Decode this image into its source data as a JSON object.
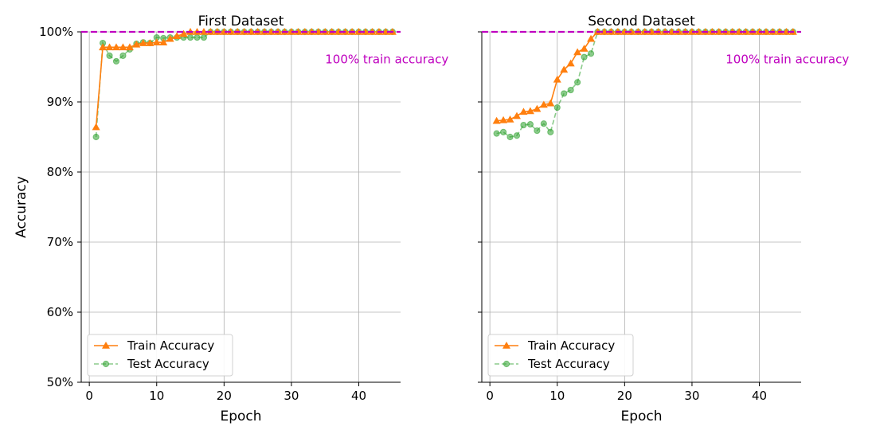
{
  "chart_data": [
    {
      "type": "line",
      "title": "First Dataset",
      "xlabel": "Epoch",
      "ylabel": "Accuracy",
      "xlim": [
        -1.2,
        46.2
      ],
      "ylim": [
        0.5,
        1.0
      ],
      "xticks": [
        0,
        10,
        20,
        30,
        40
      ],
      "yticks": [
        0.5,
        0.6,
        0.7,
        0.8,
        0.9,
        1.0
      ],
      "ytick_labels": [
        "50%",
        "60%",
        "70%",
        "80%",
        "90%",
        "100%"
      ],
      "grid": true,
      "legend_position": "bottom-left",
      "reference_line": {
        "y": 1.0,
        "color": "#bf00bf",
        "style": "dashed"
      },
      "annotation": {
        "text": "100% train accuracy",
        "x": 35,
        "y": 0.955,
        "color": "#bf00bf"
      },
      "series": [
        {
          "name": "Train Accuracy",
          "color": "#ff7f0e",
          "marker": "triangle",
          "linestyle": "solid",
          "x": [
            1,
            2,
            3,
            4,
            5,
            6,
            7,
            8,
            9,
            10,
            11,
            12,
            13,
            14,
            15,
            16,
            17,
            18,
            19,
            20,
            21,
            22,
            23,
            24,
            25,
            26,
            27,
            28,
            29,
            30,
            31,
            32,
            33,
            34,
            35,
            36,
            37,
            38,
            39,
            40,
            41,
            42,
            43,
            44,
            45
          ],
          "values": [
            0.864,
            0.978,
            0.978,
            0.978,
            0.978,
            0.978,
            0.982,
            0.984,
            0.984,
            0.985,
            0.985,
            0.99,
            0.994,
            0.997,
            1.0,
            1.0,
            1.0,
            1.0,
            1.0,
            1.0,
            1.0,
            1.0,
            1.0,
            1.0,
            1.0,
            1.0,
            1.0,
            1.0,
            1.0,
            1.0,
            1.0,
            1.0,
            1.0,
            1.0,
            1.0,
            1.0,
            1.0,
            1.0,
            1.0,
            1.0,
            1.0,
            1.0,
            1.0,
            1.0,
            1.0
          ]
        },
        {
          "name": "Test Accuracy",
          "color": "#2ca02c",
          "marker": "circle",
          "linestyle": "dashed",
          "x": [
            1,
            2,
            3,
            4,
            5,
            6,
            7,
            8,
            9,
            10,
            11,
            12,
            13,
            14,
            15,
            16,
            17,
            18,
            19,
            20,
            21,
            22,
            23,
            24,
            25,
            26,
            27,
            28,
            29,
            30,
            31,
            32,
            33,
            34,
            35,
            36,
            37,
            38,
            39,
            40,
            41,
            42,
            43,
            44,
            45
          ],
          "values": [
            0.85,
            0.984,
            0.966,
            0.958,
            0.966,
            0.975,
            0.983,
            0.985,
            0.984,
            0.992,
            0.991,
            0.992,
            0.992,
            0.992,
            0.992,
            0.992,
            0.992,
            1.0,
            1.0,
            1.0,
            1.0,
            1.0,
            1.0,
            1.0,
            1.0,
            1.0,
            1.0,
            1.0,
            1.0,
            1.0,
            1.0,
            1.0,
            1.0,
            1.0,
            1.0,
            1.0,
            1.0,
            1.0,
            1.0,
            1.0,
            1.0,
            1.0,
            1.0,
            1.0,
            1.0
          ]
        }
      ]
    },
    {
      "type": "line",
      "title": "Second Dataset",
      "xlabel": "Epoch",
      "ylabel": "",
      "xlim": [
        -1.2,
        46.2
      ],
      "ylim": [
        0.5,
        1.0
      ],
      "xticks": [
        0,
        10,
        20,
        30,
        40
      ],
      "yticks": [
        0.5,
        0.6,
        0.7,
        0.8,
        0.9,
        1.0
      ],
      "ytick_labels": [
        "",
        "",
        "",
        "",
        "",
        ""
      ],
      "grid": true,
      "legend_position": "bottom-left",
      "reference_line": {
        "y": 1.0,
        "color": "#bf00bf",
        "style": "dashed"
      },
      "annotation": {
        "text": "100% train accuracy",
        "x": 35,
        "y": 0.955,
        "color": "#bf00bf"
      },
      "series": [
        {
          "name": "Train Accuracy",
          "color": "#ff7f0e",
          "marker": "triangle",
          "linestyle": "solid",
          "x": [
            1,
            2,
            3,
            4,
            5,
            6,
            7,
            8,
            9,
            10,
            11,
            12,
            13,
            14,
            15,
            16,
            17,
            18,
            19,
            20,
            21,
            22,
            23,
            24,
            25,
            26,
            27,
            28,
            29,
            30,
            31,
            32,
            33,
            34,
            35,
            36,
            37,
            38,
            39,
            40,
            41,
            42,
            43,
            44,
            45
          ],
          "values": [
            0.873,
            0.874,
            0.875,
            0.88,
            0.886,
            0.887,
            0.89,
            0.896,
            0.898,
            0.932,
            0.946,
            0.955,
            0.971,
            0.976,
            0.99,
            1.0,
            1.0,
            1.0,
            1.0,
            1.0,
            1.0,
            1.0,
            1.0,
            1.0,
            1.0,
            1.0,
            1.0,
            1.0,
            1.0,
            1.0,
            1.0,
            1.0,
            1.0,
            1.0,
            1.0,
            1.0,
            1.0,
            1.0,
            1.0,
            1.0,
            1.0,
            1.0,
            1.0,
            1.0,
            1.0
          ]
        },
        {
          "name": "Test Accuracy",
          "color": "#2ca02c",
          "marker": "circle",
          "linestyle": "dashed",
          "x": [
            1,
            2,
            3,
            4,
            5,
            6,
            7,
            8,
            9,
            10,
            11,
            12,
            13,
            14,
            15,
            16,
            17,
            18,
            19,
            20,
            21,
            22,
            23,
            24,
            25,
            26,
            27,
            28,
            29,
            30,
            31,
            32,
            33,
            34,
            35,
            36,
            37,
            38,
            39,
            40,
            41,
            42,
            43,
            44,
            45
          ],
          "values": [
            0.855,
            0.857,
            0.85,
            0.852,
            0.867,
            0.868,
            0.859,
            0.869,
            0.857,
            0.892,
            0.912,
            0.917,
            0.928,
            0.964,
            0.969,
            1.0,
            1.0,
            1.0,
            1.0,
            1.0,
            1.0,
            1.0,
            1.0,
            1.0,
            1.0,
            1.0,
            1.0,
            1.0,
            1.0,
            1.0,
            1.0,
            1.0,
            1.0,
            1.0,
            1.0,
            1.0,
            1.0,
            1.0,
            1.0,
            1.0,
            1.0,
            1.0,
            1.0,
            1.0,
            1.0
          ]
        }
      ]
    }
  ]
}
